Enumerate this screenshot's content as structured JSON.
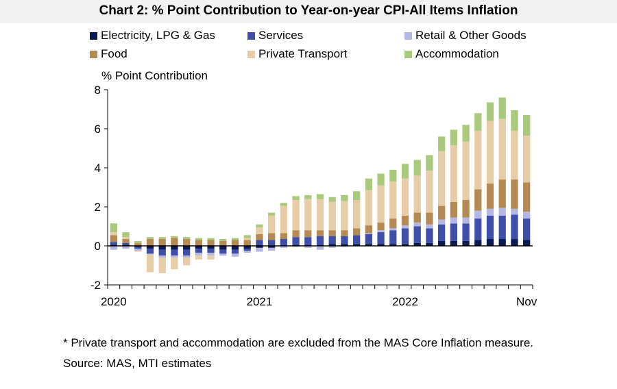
{
  "title": "Chart 2: % Point Contribution to Year-on-year CPI-All Items Inflation",
  "footnote": "* Private transport and accommodation are excluded from the MAS Core Inflation measure.",
  "source": "Source: MAS, MTI estimates",
  "chart_data": {
    "type": "bar",
    "stacked": true,
    "ylabel": "% Point Contribution",
    "xlabel": "",
    "ylim": [
      -2,
      8
    ],
    "yticks": [
      -2,
      0,
      2,
      4,
      6,
      8
    ],
    "x_tick_labels": [
      "2020",
      "2021",
      "2022",
      "Nov"
    ],
    "categories": [
      "Jan 2020",
      "Feb 2020",
      "Mar 2020",
      "Apr 2020",
      "May 2020",
      "Jun 2020",
      "Jul 2020",
      "Aug 2020",
      "Sep 2020",
      "Oct 2020",
      "Nov 2020",
      "Dec 2020",
      "Jan 2021",
      "Feb 2021",
      "Mar 2021",
      "Apr 2021",
      "May 2021",
      "Jun 2021",
      "Jul 2021",
      "Aug 2021",
      "Sep 2021",
      "Oct 2021",
      "Nov 2021",
      "Dec 2021",
      "Jan 2022",
      "Feb 2022",
      "Mar 2022",
      "Apr 2022",
      "May 2022",
      "Jun 2022",
      "Jul 2022",
      "Aug 2022",
      "Sep 2022",
      "Oct 2022",
      "Nov 2022"
    ],
    "series": [
      {
        "name": "Electricity, LPG & Gas",
        "color": "#0d1a52",
        "values": [
          0.05,
          0.05,
          -0.05,
          -0.15,
          -0.2,
          -0.2,
          -0.2,
          -0.15,
          -0.15,
          -0.2,
          -0.2,
          -0.15,
          -0.1,
          -0.1,
          0.0,
          0.05,
          0.05,
          0.05,
          0.1,
          0.1,
          0.1,
          0.1,
          0.1,
          0.1,
          0.1,
          0.15,
          0.15,
          0.25,
          0.25,
          0.25,
          0.3,
          0.35,
          0.35,
          0.35,
          0.3
        ]
      },
      {
        "name": "Services",
        "color": "#3f4fa8",
        "values": [
          0.15,
          0.1,
          -0.1,
          -0.25,
          -0.3,
          -0.3,
          -0.3,
          -0.2,
          -0.2,
          -0.2,
          -0.2,
          -0.1,
          0.3,
          0.3,
          0.35,
          0.4,
          0.4,
          0.45,
          0.4,
          0.4,
          0.45,
          0.5,
          0.6,
          0.7,
          0.8,
          0.85,
          0.75,
          0.85,
          0.9,
          0.9,
          1.1,
          1.2,
          1.2,
          1.25,
          1.1
        ]
      },
      {
        "name": "Retail & Other Goods",
        "color": "#b4b7e3",
        "values": [
          -0.2,
          -0.15,
          -0.1,
          -0.05,
          -0.1,
          -0.1,
          -0.1,
          -0.15,
          -0.15,
          -0.1,
          -0.15,
          -0.1,
          -0.2,
          -0.15,
          -0.1,
          -0.05,
          -0.1,
          -0.2,
          -0.1,
          -0.05,
          0.0,
          0.05,
          0.1,
          0.1,
          0.15,
          0.2,
          0.2,
          0.25,
          0.3,
          0.3,
          0.4,
          0.35,
          0.4,
          0.3,
          0.35
        ]
      },
      {
        "name": "Food",
        "color": "#b48a52",
        "values": [
          0.35,
          0.2,
          0.15,
          0.35,
          0.35,
          0.4,
          0.35,
          0.3,
          0.3,
          0.25,
          0.3,
          0.3,
          0.3,
          0.35,
          0.3,
          0.35,
          0.35,
          0.3,
          0.3,
          0.3,
          0.35,
          0.4,
          0.4,
          0.5,
          0.5,
          0.5,
          0.6,
          0.7,
          0.8,
          0.9,
          1.1,
          1.3,
          1.45,
          1.5,
          1.5
        ]
      },
      {
        "name": "Private Transport",
        "color": "#e6cda7",
        "values": [
          0.15,
          0.1,
          -0.05,
          -0.9,
          -0.8,
          -0.6,
          -0.4,
          -0.2,
          -0.2,
          0.0,
          0.0,
          0.1,
          0.35,
          0.9,
          1.4,
          1.55,
          1.6,
          1.6,
          1.45,
          1.5,
          1.45,
          1.8,
          1.9,
          1.9,
          1.9,
          1.9,
          2.15,
          2.8,
          2.9,
          3.0,
          3.0,
          3.2,
          3.1,
          2.5,
          2.4
        ]
      },
      {
        "name": "Accommodation",
        "color": "#a9c97c",
        "values": [
          0.45,
          0.25,
          0.1,
          0.1,
          0.1,
          0.1,
          0.1,
          0.1,
          0.1,
          0.1,
          0.1,
          0.15,
          0.15,
          0.15,
          0.15,
          0.2,
          0.2,
          0.25,
          0.25,
          0.3,
          0.45,
          0.6,
          0.6,
          0.6,
          0.75,
          0.8,
          0.8,
          0.75,
          0.8,
          0.85,
          0.9,
          0.95,
          1.1,
          1.05,
          1.05
        ]
      }
    ]
  }
}
